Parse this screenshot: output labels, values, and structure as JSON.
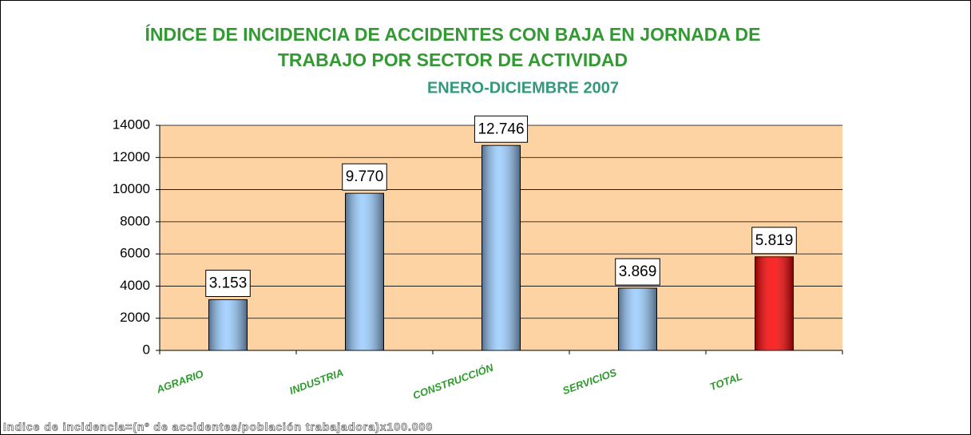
{
  "chart_data": {
    "type": "bar",
    "title": [
      "ÍNDICE DE INCIDENCIA DE ACCIDENTES CON BAJA EN JORNADA DE",
      "TRABAJO POR SECTOR DE ACTIVIDAD"
    ],
    "subtitle": "ENERO-DICIEMBRE 2007",
    "categories": [
      "AGRARIO",
      "INDUSTRIA",
      "CONSTRUCCIÓN",
      "SERVICIOS",
      "TOTAL"
    ],
    "values": [
      3153,
      9770,
      12746,
      3869,
      5819
    ],
    "value_labels": [
      "3.153",
      "9.770",
      "12.746",
      "3.869",
      "5.819"
    ],
    "colors": [
      "#99ccff",
      "#99ccff",
      "#99ccff",
      "#99ccff",
      "#ff0000"
    ],
    "ylim": [
      0,
      14000
    ],
    "yticks": [
      0,
      2000,
      4000,
      6000,
      8000,
      10000,
      12000,
      14000
    ],
    "grid": true,
    "footnote": "Indice de incidencia=(nº de accidentes/población trabajadora)x100.000"
  }
}
